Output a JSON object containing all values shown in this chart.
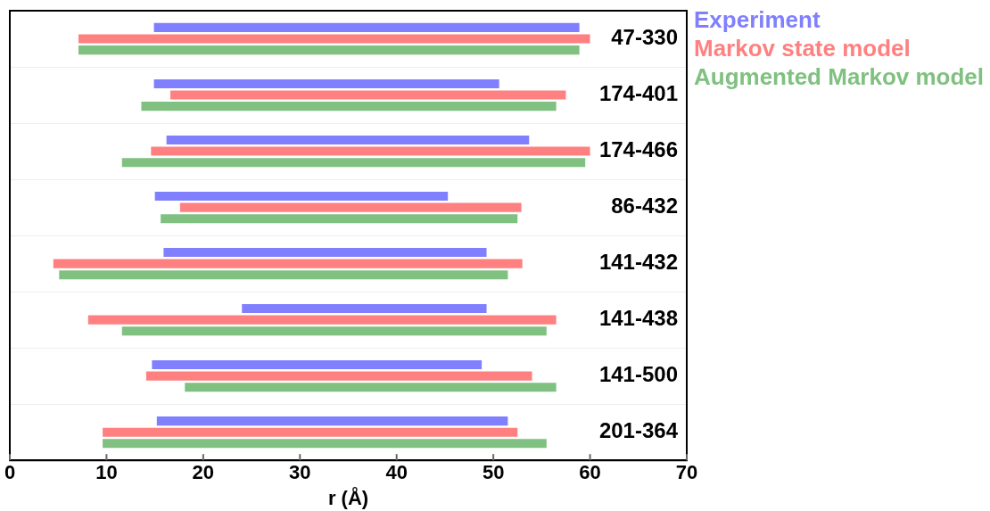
{
  "chart_data": {
    "type": "bar",
    "orientation": "horizontal",
    "xlabel": "r (Å)",
    "categories": [
      "47-330",
      "174-401",
      "174-466",
      "86-432",
      "141-432",
      "141-438",
      "141-500",
      "201-364"
    ],
    "series": [
      {
        "name": "Experiment",
        "color": "#8080ff",
        "base": [
          14.9,
          14.9,
          16.2,
          15.0,
          15.9,
          24.0,
          14.7,
          15.2
        ],
        "values": [
          44.0,
          35.7,
          37.5,
          30.3,
          33.4,
          25.3,
          34.1,
          36.3
        ]
      },
      {
        "name": "Markov state model",
        "color": "#ff8080",
        "base": [
          7.1,
          16.6,
          14.6,
          17.6,
          4.5,
          8.1,
          14.1,
          9.6
        ],
        "values": [
          52.9,
          40.9,
          45.4,
          35.3,
          48.5,
          48.4,
          39.9,
          42.9
        ]
      },
      {
        "name": "Augmented Markov model",
        "color": "#80c080",
        "base": [
          7.1,
          13.6,
          11.6,
          15.6,
          5.1,
          11.6,
          18.1,
          9.6
        ],
        "values": [
          51.8,
          42.9,
          47.9,
          36.9,
          46.4,
          43.9,
          38.4,
          45.9
        ]
      }
    ],
    "xlim": [
      0,
      70
    ],
    "xticks": [
      0,
      10,
      20,
      30,
      40,
      50,
      60,
      70
    ],
    "grid": "y",
    "legend": "top right"
  }
}
